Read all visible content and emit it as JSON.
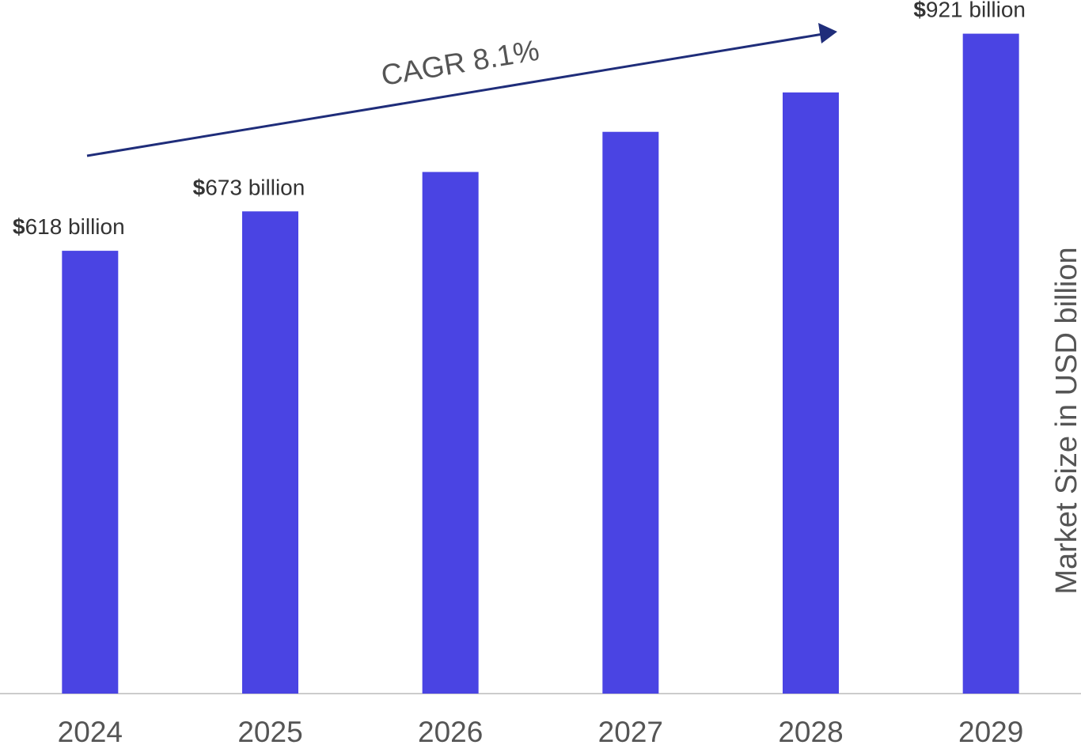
{
  "chart_data": {
    "type": "bar",
    "categories": [
      "2024",
      "2025",
      "2026",
      "2027",
      "2028",
      "2029"
    ],
    "values": [
      618,
      673,
      728,
      784,
      839,
      921
    ],
    "value_labels": [
      "$618 billion",
      "$673 billion",
      null,
      null,
      null,
      "$921 billion"
    ],
    "color": "#4a44e3",
    "ylim": [
      0,
      968
    ],
    "y_axis_label": "Market Size in USD billion",
    "annotation": "CAGR 8.1%"
  }
}
